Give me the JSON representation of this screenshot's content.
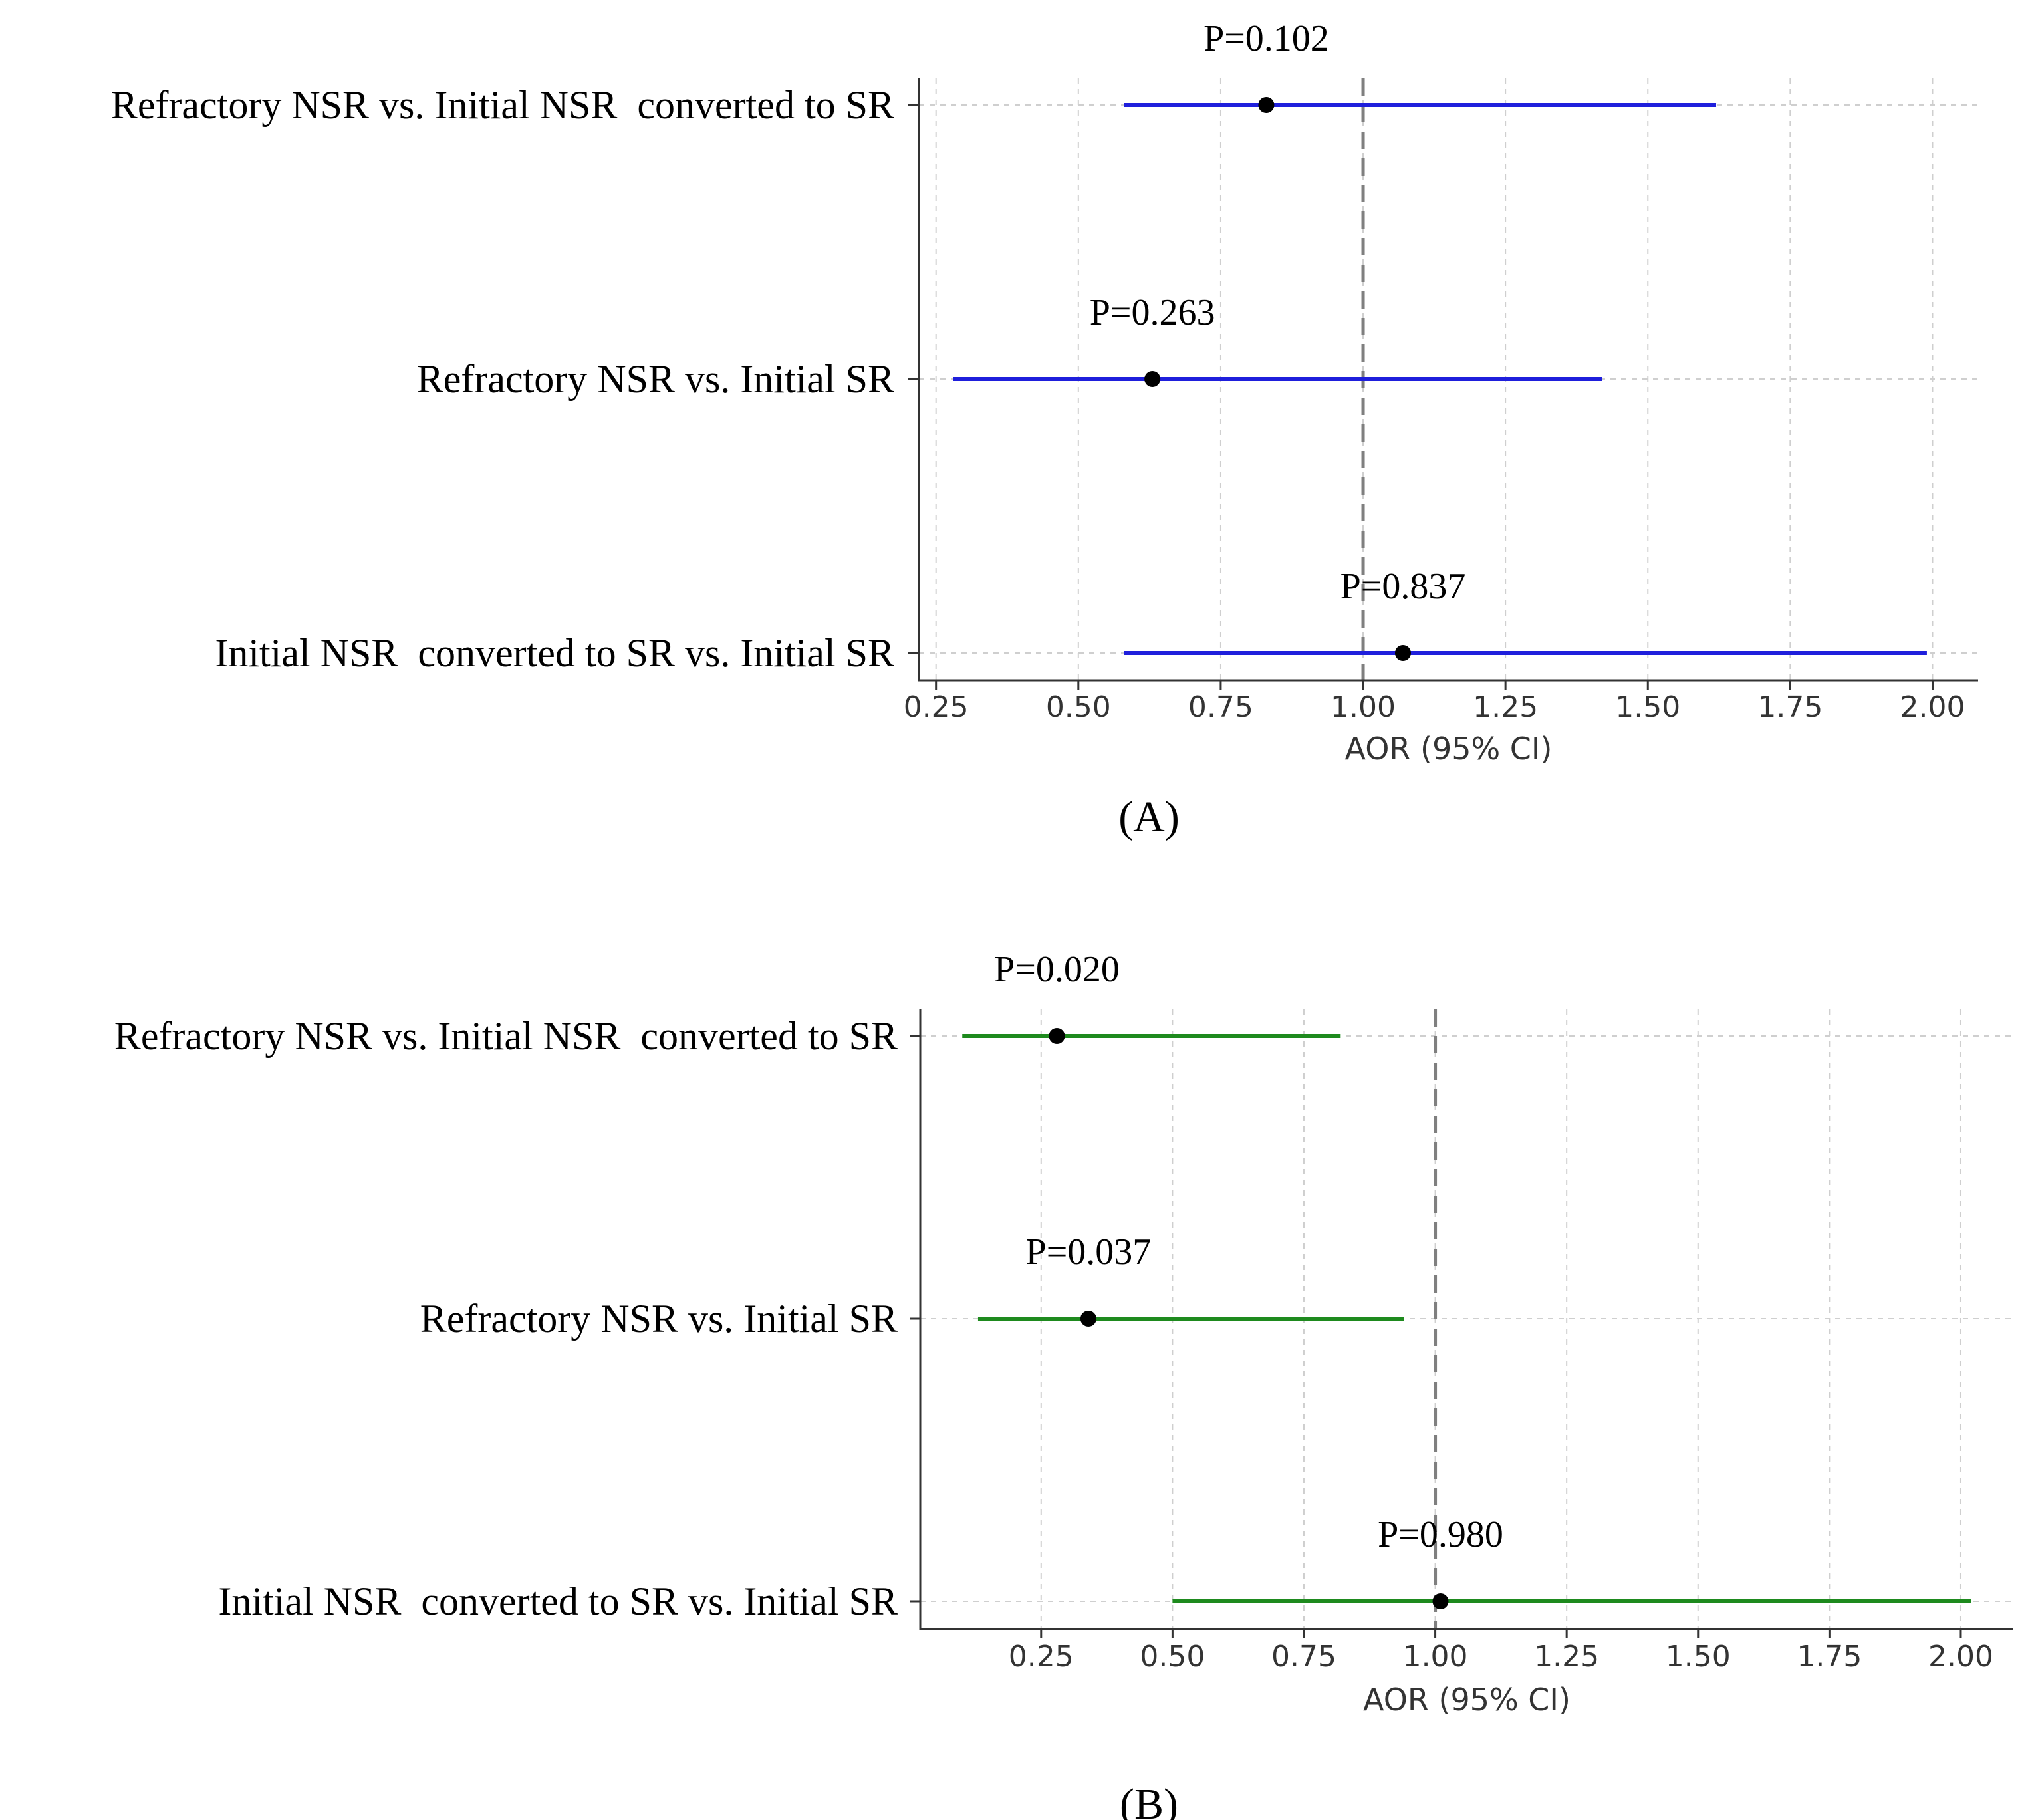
{
  "chart_data": [
    {
      "type": "forest",
      "panel_label": "(A)",
      "xlabel": "AOR (95% CI)",
      "xlim": [
        0.22,
        2.08
      ],
      "xticks": [
        "0.25",
        "0.50",
        "0.75",
        "1.00",
        "1.25",
        "1.50",
        "1.75",
        "2.00"
      ],
      "reference_line": 1.0,
      "color": "#1f1fdc",
      "grid": true,
      "rows": [
        {
          "label": "Refractory NSR vs. Initial NSR  converted to SR",
          "aor": 0.83,
          "ci_low": 0.58,
          "ci_high": 1.62,
          "p": "P=0.102"
        },
        {
          "label": "Refractory NSR vs. Initial SR",
          "aor": 0.63,
          "ci_low": 0.28,
          "ci_high": 1.42,
          "p": "P=0.263"
        },
        {
          "label": "Initial NSR  converted to SR vs. Initial SR",
          "aor": 1.07,
          "ci_low": 0.58,
          "ci_high": 1.99,
          "p": "P=0.837"
        }
      ]
    },
    {
      "type": "forest",
      "panel_label": "(B)",
      "xlabel": "AOR (95% CI)",
      "xlim": [
        0.02,
        2.1
      ],
      "xticks": [
        "0.25",
        "0.50",
        "0.75",
        "1.00",
        "1.25",
        "1.50",
        "1.75",
        "2.00"
      ],
      "reference_line": 1.0,
      "color": "#1e8a1e",
      "grid": true,
      "rows": [
        {
          "label": "Refractory NSR vs. Initial NSR  converted to SR",
          "aor": 0.28,
          "ci_low": 0.1,
          "ci_high": 0.82,
          "p": "P=0.020"
        },
        {
          "label": "Refractory NSR vs. Initial SR",
          "aor": 0.34,
          "ci_low": 0.13,
          "ci_high": 0.94,
          "p": "P=0.037"
        },
        {
          "label": "Initial NSR  converted to SR vs. Initial SR",
          "aor": 1.01,
          "ci_low": 0.5,
          "ci_high": 2.02,
          "p": "P=0.980"
        }
      ]
    }
  ]
}
